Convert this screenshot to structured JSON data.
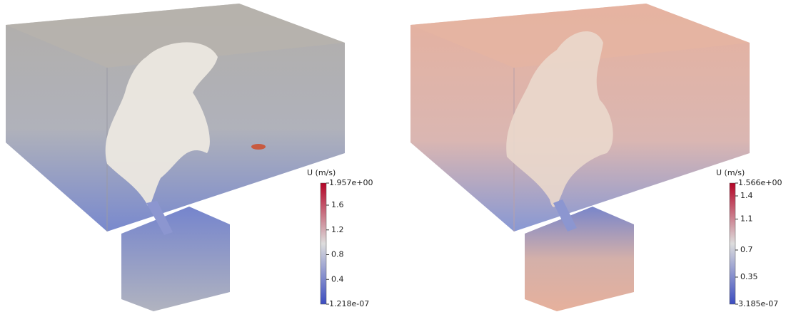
{
  "panels": [
    {
      "colorbar": {
        "title": "U (m/s)",
        "range": [
          {
            "value": 1.218e-07,
            "label": "1.218e-07"
          },
          {
            "value": 1.957,
            "label": "1.957e+00"
          }
        ],
        "ticks": [
          0.4,
          0.8,
          1.2,
          1.6
        ]
      }
    },
    {
      "colorbar": {
        "title": "U (m/s)",
        "range": [
          {
            "value": 3.185e-07,
            "label": "3.185e-07"
          },
          {
            "value": 1.566,
            "label": "1.566e+00"
          }
        ],
        "ticks": [
          0.35,
          0.7,
          1.1,
          1.4
        ]
      }
    }
  ]
}
